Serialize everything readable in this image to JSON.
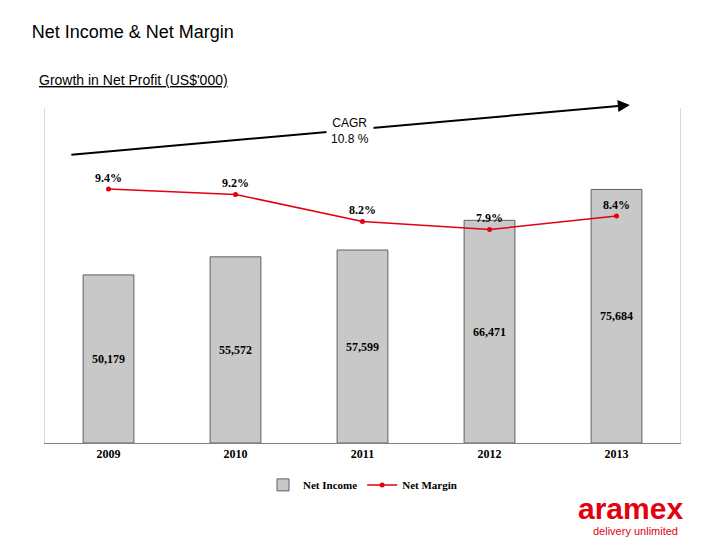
{
  "chart_data": {
    "type": "bar",
    "title": "Net Income & Net Margin",
    "subtitle": "Growth in Net Profit (US$'000)",
    "categories": [
      "2009",
      "2010",
      "2011",
      "2012",
      "2013"
    ],
    "series": [
      {
        "name": "Net Income",
        "type": "bar",
        "color": "#c8c8c8",
        "values": [
          50179,
          55572,
          57599,
          66471,
          75684
        ],
        "value_labels": [
          "50,179",
          "55,572",
          "57,599",
          "66,471",
          "75,684"
        ]
      },
      {
        "name": "Net Margin",
        "type": "line",
        "color": "#e3000f",
        "marker": "circle",
        "axis": "y2",
        "values": [
          9.4,
          9.2,
          8.2,
          7.9,
          8.4
        ],
        "value_labels": [
          "9.4%",
          "9.2%",
          "8.2%",
          "7.9%",
          "8.4%"
        ]
      }
    ],
    "ylim": [
      0,
      100000
    ],
    "y2lim": [
      0,
      12.4
    ],
    "tick_labels": "x",
    "data_labels": true,
    "grid": false,
    "legend": "bottom",
    "annotations": [
      {
        "lines": [
          "CAGR",
          "10.8 %"
        ]
      }
    ],
    "logo": {
      "name": "aramex",
      "tagline": "delivery unlimited"
    }
  }
}
